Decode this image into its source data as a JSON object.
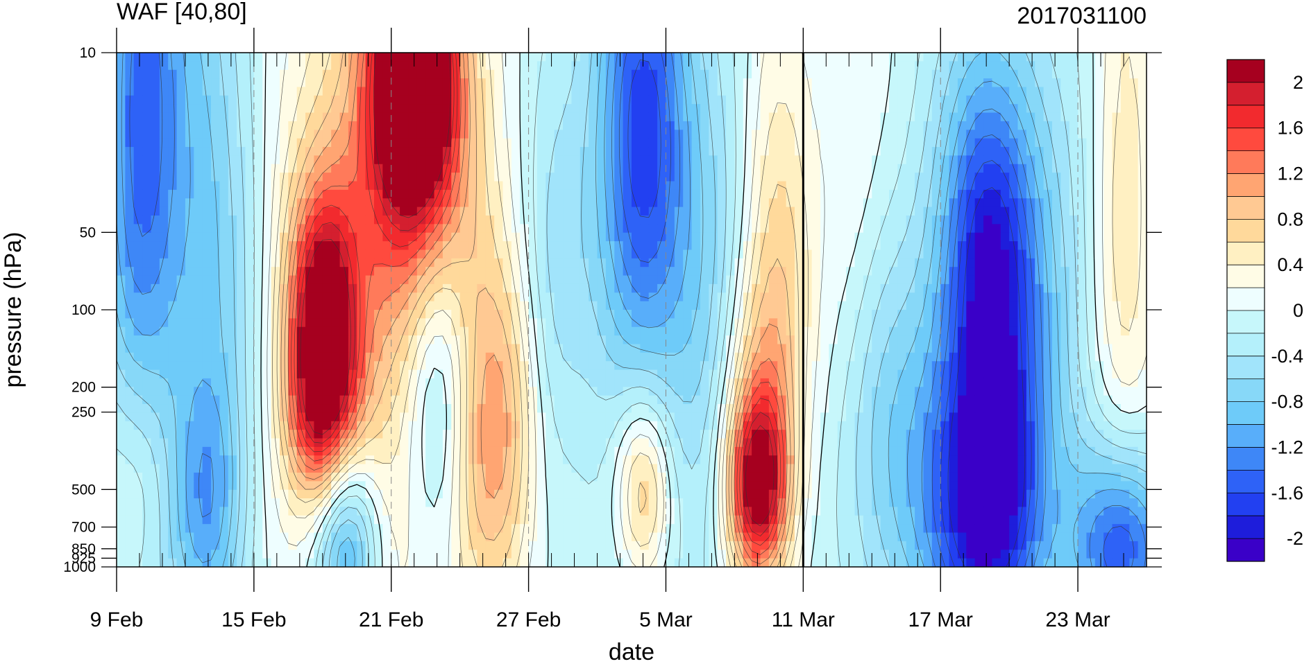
{
  "chart_data": {
    "type": "contour",
    "title_left": "WAF [40,80]",
    "title_right": "2017031100",
    "xlabel": "date",
    "ylabel": "pressure (hPa)",
    "x_tick_labels": [
      "9 Feb",
      "15 Feb",
      "21 Feb",
      "27 Feb",
      "5 Mar",
      "11 Mar",
      "17 Mar",
      "23 Mar"
    ],
    "x_tick_dates": [
      "2017-02-09",
      "2017-02-15",
      "2017-02-21",
      "2017-02-27",
      "2017-03-05",
      "2017-03-11",
      "2017-03-17",
      "2017-03-23"
    ],
    "x_range": [
      "2017-02-09",
      "2017-03-26"
    ],
    "y_scale": "log",
    "y_range": [
      1000,
      10
    ],
    "y_tick_labels": [
      "10",
      "50",
      "100",
      "200",
      "250",
      "500",
      "700",
      "850",
      "925",
      "1000"
    ],
    "y_tick_values": [
      10,
      50,
      100,
      200,
      250,
      500,
      700,
      850,
      925,
      1000
    ],
    "colorbar_labels": [
      "2",
      "1.6",
      "1.2",
      "0.8",
      "0.4",
      "0",
      "-0.4",
      "-0.8",
      "-1.2",
      "-1.6",
      "-2"
    ],
    "colorbar_levels": [
      2.2,
      2,
      1.8,
      1.6,
      1.4,
      1.2,
      1,
      0.8,
      0.6,
      0.4,
      0.2,
      0,
      -0.2,
      -0.4,
      -0.6,
      -0.8,
      -1,
      -1.2,
      -1.4,
      -1.6,
      -1.8,
      -2
    ],
    "colors": [
      "#a6001f",
      "#d41f2f",
      "#f22a2e",
      "#ff4a3e",
      "#ff7a5a",
      "#ffa572",
      "#ffc993",
      "#ffd99b",
      "#fff0c2",
      "#fffce6",
      "#eefeff",
      "#c7f7fb",
      "#b4f0fb",
      "#a1e4fb",
      "#87d8f8",
      "#6ecbf9",
      "#58aefa",
      "#3e87f7",
      "#2e62f7",
      "#2240f1",
      "#1e1ddb",
      "#3a00c8"
    ],
    "vertical_line": "2017-03-11",
    "grid_dashed_dates": [
      "2017-02-15",
      "2017-02-21",
      "2017-02-27",
      "2017-03-05",
      "2017-03-17",
      "2017-03-23"
    ],
    "features": [
      {
        "date": "2017-02-22",
        "p": 12,
        "v": 2.2,
        "sx": 1.6,
        "sy": 0.45
      },
      {
        "date": "2017-02-22",
        "p": 20,
        "v": 1.4,
        "sx": 2.4,
        "sy": 0.9
      },
      {
        "date": "2017-02-18",
        "p": 100,
        "v": 1.6,
        "sx": 1.5,
        "sy": 0.5
      },
      {
        "date": "2017-02-18",
        "p": 250,
        "v": 1.2,
        "sx": 1.6,
        "sy": 0.4
      },
      {
        "date": "2017-02-19",
        "p": 60,
        "v": 0.7,
        "sx": 3.2,
        "sy": 1.4
      },
      {
        "date": "2017-02-24",
        "p": 50,
        "v": 0.4,
        "sx": 2.5,
        "sy": 1.2
      },
      {
        "date": "2017-02-10",
        "p": 20,
        "v": -1.4,
        "sx": 1.8,
        "sy": 1.6
      },
      {
        "date": "2017-02-13",
        "p": 40,
        "v": -0.8,
        "sx": 2.2,
        "sy": 1.5
      },
      {
        "date": "2017-03-04",
        "p": 20,
        "v": -1.3,
        "sx": 2.0,
        "sy": 0.9
      },
      {
        "date": "2017-03-04",
        "p": 100,
        "v": -0.5,
        "sx": 3.0,
        "sy": 1.6
      },
      {
        "date": "2017-02-28",
        "p": 60,
        "v": -0.4,
        "sx": 1.6,
        "sy": 1.2
      },
      {
        "date": "2017-03-09",
        "p": 500,
        "v": 1.8,
        "sx": 1.3,
        "sy": 0.35
      },
      {
        "date": "2017-03-09",
        "p": 250,
        "v": 0.8,
        "sx": 1.6,
        "sy": 0.6
      },
      {
        "date": "2017-03-10",
        "p": 50,
        "v": 0.6,
        "sx": 1.5,
        "sy": 1.0
      },
      {
        "date": "2017-03-04",
        "p": 500,
        "v": 1.2,
        "sx": 1.3,
        "sy": 0.4
      },
      {
        "date": "2017-02-26",
        "p": 250,
        "v": 0.7,
        "sx": 1.6,
        "sy": 0.6
      },
      {
        "date": "2017-02-25",
        "p": 600,
        "v": 0.5,
        "sx": 1.6,
        "sy": 0.6
      },
      {
        "date": "2017-02-19",
        "p": 800,
        "v": -1.4,
        "sx": 1.4,
        "sy": 0.4
      },
      {
        "date": "2017-02-13",
        "p": 600,
        "v": -0.8,
        "sx": 1.6,
        "sy": 0.5
      },
      {
        "date": "2017-02-23",
        "p": 180,
        "v": -0.9,
        "sx": 1.4,
        "sy": 0.6
      },
      {
        "date": "2017-02-10",
        "p": 450,
        "v": 0.6,
        "sx": 1.6,
        "sy": 0.5
      },
      {
        "date": "2017-03-19",
        "p": 70,
        "v": -1.3,
        "sx": 2.0,
        "sy": 0.7
      },
      {
        "date": "2017-03-20",
        "p": 120,
        "v": -0.9,
        "sx": 3.4,
        "sy": 1.5
      },
      {
        "date": "2017-03-19",
        "p": 600,
        "v": -1.5,
        "sx": 2.4,
        "sy": 0.55
      },
      {
        "date": "2017-03-25",
        "p": 850,
        "v": -1.5,
        "sx": 2.2,
        "sy": 0.4
      },
      {
        "date": "2017-03-15",
        "p": 400,
        "v": -0.7,
        "sx": 2.6,
        "sy": 0.8
      },
      {
        "date": "2017-03-25",
        "p": 30,
        "v": 0.6,
        "sx": 1.4,
        "sy": 1.2
      },
      {
        "date": "2017-03-13",
        "p": 40,
        "v": 0.2,
        "sx": 1.4,
        "sy": 1.0
      },
      {
        "date": "2017-03-07",
        "p": 60,
        "v": -0.4,
        "sx": 1.8,
        "sy": 1.4
      },
      {
        "date": "2017-03-01",
        "p": 400,
        "v": 0.1,
        "sx": 1.4,
        "sy": 0.6
      }
    ]
  }
}
